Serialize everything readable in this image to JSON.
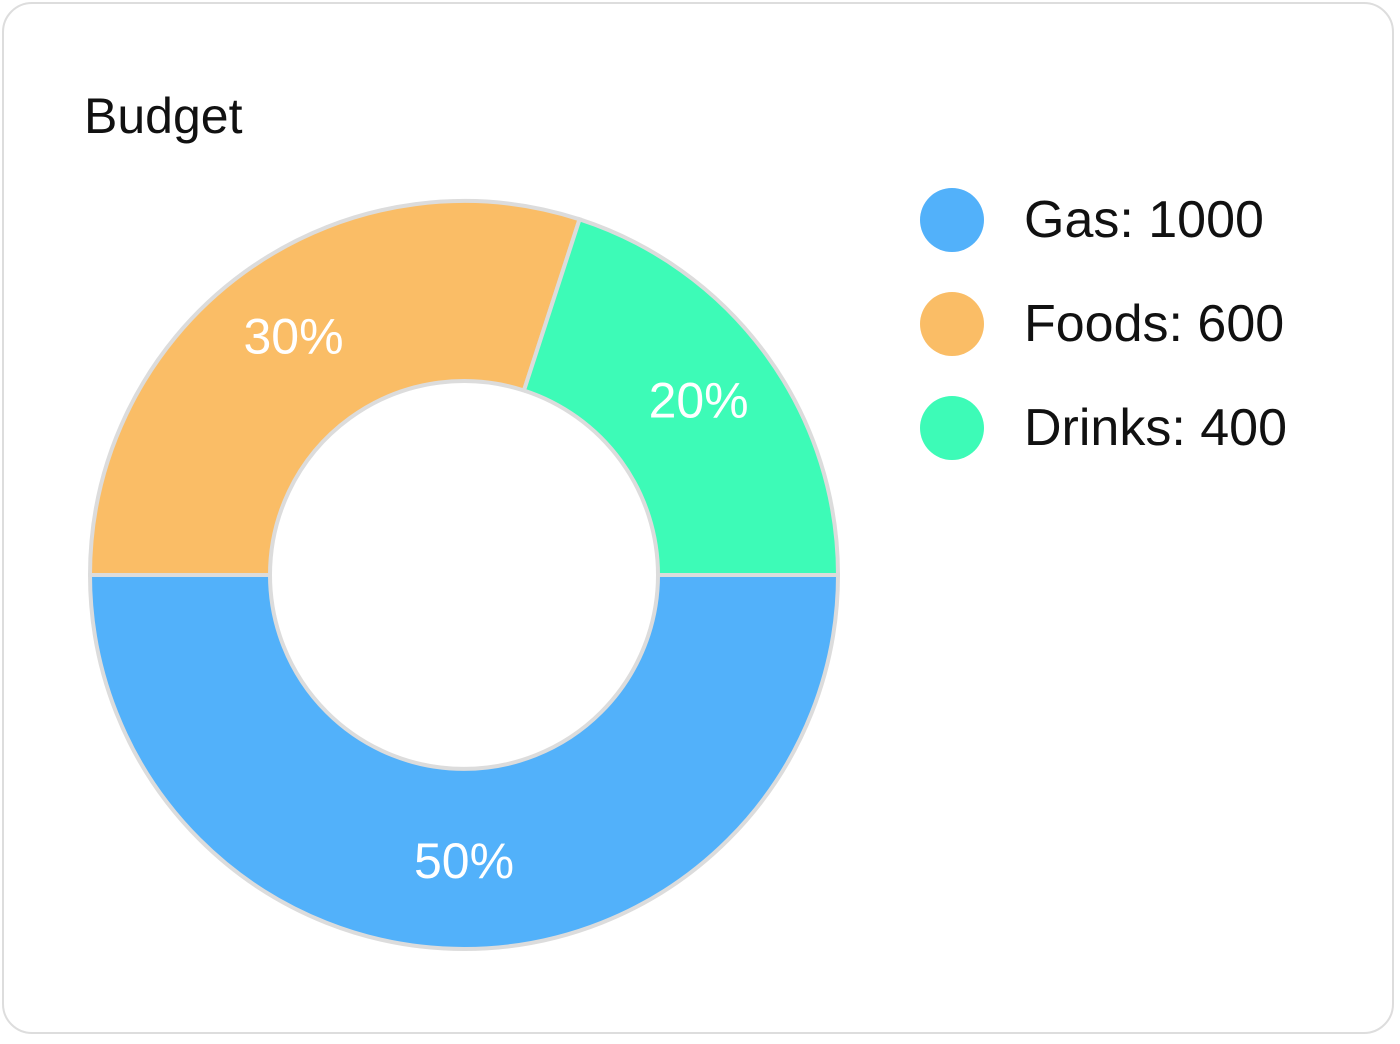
{
  "chart_data": {
    "type": "pie",
    "variant": "donut",
    "title": "Budget",
    "categories": [
      "Gas",
      "Foods",
      "Drinks"
    ],
    "values": [
      1000,
      600,
      400
    ],
    "percent_labels": [
      "50%",
      "30%",
      "20%"
    ],
    "legend_labels": [
      "Gas: 1000",
      "Foods: 600",
      "Drinks: 400"
    ],
    "colors": [
      "#52b1fa",
      "#fabd66",
      "#3dfbb7"
    ],
    "legend_position": "right"
  }
}
